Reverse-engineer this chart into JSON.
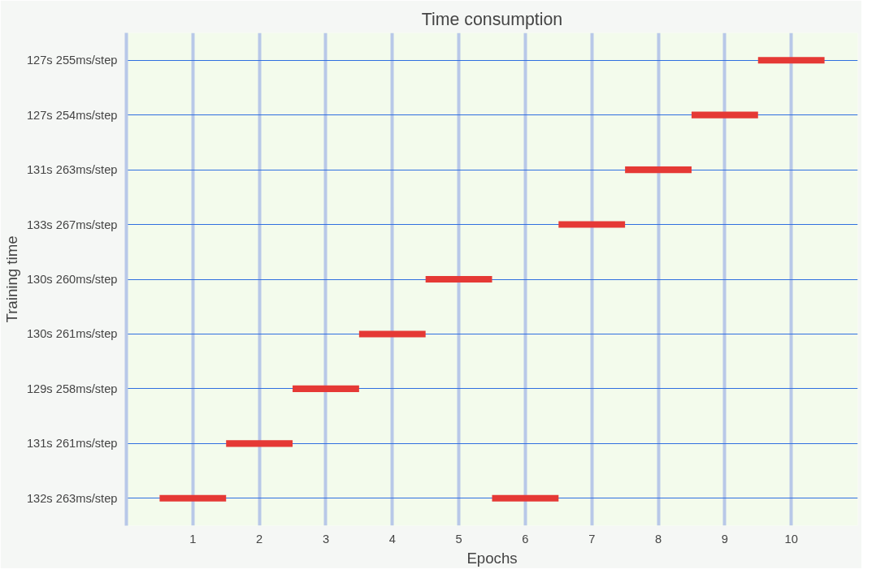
{
  "chart_data": {
    "type": "bar",
    "orientation": "horizontal",
    "title": "Time consumption",
    "xlabel": "Epochs",
    "ylabel": "Training time",
    "categories": [
      "127s 255ms/step",
      "127s 254ms/step",
      "131s 263ms/step",
      "133s 267ms/step",
      "130s 260ms/step",
      "130s 261ms/step",
      "129s 258ms/step",
      "131s 261ms/step",
      "132s 263ms/step"
    ],
    "series": [
      {
        "color": "#e53935",
        "base": [
          9.5,
          8.5,
          7.5,
          6.5,
          4.5,
          3.5,
          2.5,
          1.5,
          0.5
        ],
        "values": [
          1,
          1,
          1,
          1,
          1,
          1,
          1,
          1,
          1
        ]
      },
      {
        "color": "#e53935",
        "base": [
          null,
          null,
          null,
          null,
          null,
          null,
          null,
          null,
          5.5
        ],
        "values": [
          null,
          null,
          null,
          null,
          null,
          null,
          null,
          null,
          1
        ]
      }
    ],
    "xlim": [
      0,
      11
    ],
    "xticks": [
      1,
      2,
      3,
      4,
      5,
      6,
      7,
      8,
      9,
      10
    ],
    "grid": true
  }
}
